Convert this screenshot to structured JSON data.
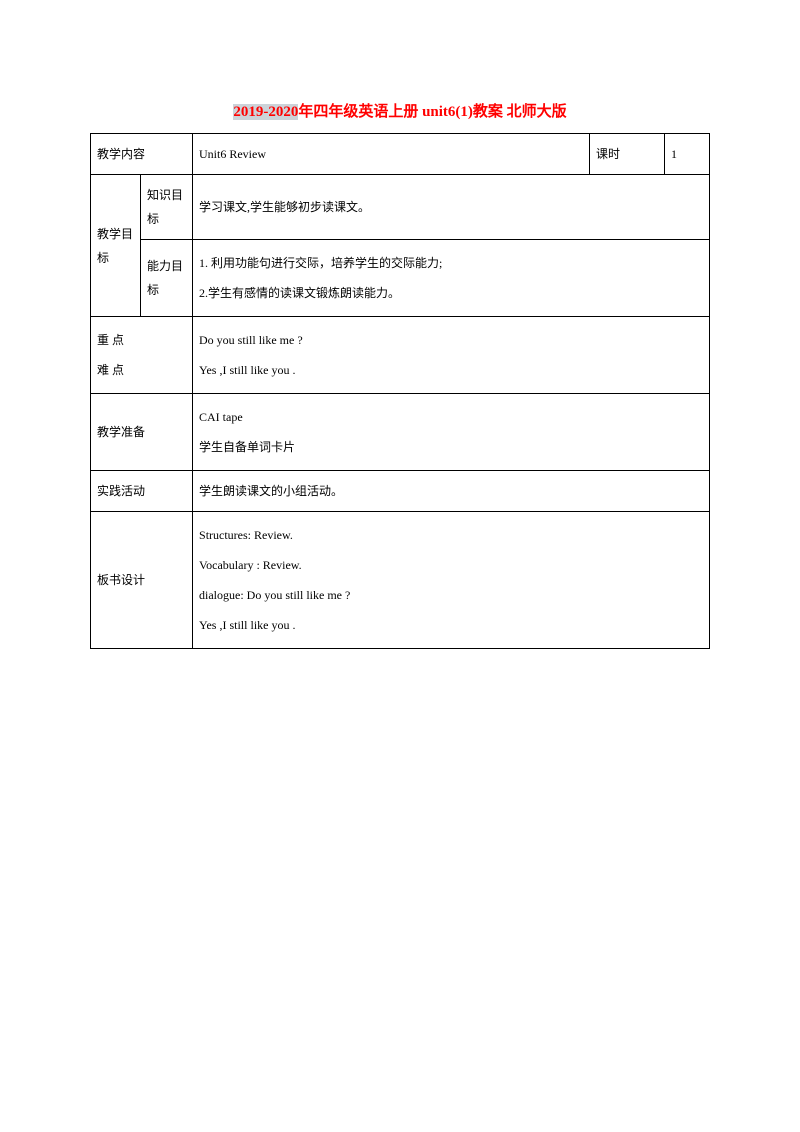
{
  "title": {
    "highlighted": "2019-2020",
    "plain": "年四年级英语上册 unit6(1)教案 北师大版"
  },
  "rows": {
    "row1": {
      "label": "教学内容",
      "content": "Unit6  Review",
      "periodLabel": "课时",
      "periodValue": "1"
    },
    "row2": {
      "sideLabel": "教学目标",
      "sub1Label": "知识目标",
      "sub1Content": "学习课文,学生能够初步读课文。",
      "sub2Label": "能力目标",
      "sub2Content": "1. 利用功能句进行交际，培养学生的交际能力;\n2.学生有感情的读课文锻炼朗读能力。"
    },
    "row3": {
      "label": "重  点\n难  点",
      "content": "Do you still like me ?\nYes ,I still like you ."
    },
    "row4": {
      "label": "教学准备",
      "content": "CAI tape\n学生自备单词卡片"
    },
    "row5": {
      "label": "实践活动",
      "content": "学生朗读课文的小组活动。"
    },
    "row6": {
      "label": "板书设计",
      "content": " Structures: Review.\nVocabulary : Review.\ndialogue: Do you still like me ?\n        Yes ,I still like you ."
    }
  },
  "colors": {
    "highlight_bg": "#ccd3d9",
    "title_text": "#ff0000",
    "border": "#000000",
    "background": "#ffffff"
  },
  "fonts": {
    "title_size": 15,
    "body_size": 12
  }
}
